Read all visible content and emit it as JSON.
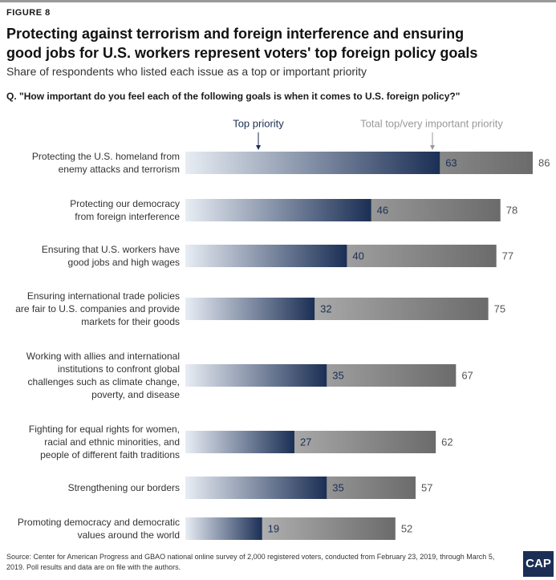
{
  "figure_label": "FIGURE 8",
  "chart_data": {
    "type": "bar",
    "title": "Protecting against terrorism and foreign interference and ensuring\ngood jobs for U.S. workers represent voters' top foreign policy goals",
    "subtitle": "Share of respondents who listed each issue as a top or important priority",
    "question": "Q. \"How important do you feel each of the following goals is when it comes to U.S. foreign policy?\"",
    "categories": [
      "Protecting the U.S. homeland from\nenemy attacks and terrorism",
      "Protecting our democracy\nfrom foreign interference",
      "Ensuring that U.S. workers have\ngood jobs and high wages",
      "Ensuring international trade policies\nare fair to U.S. companies and provide\nmarkets for their goods",
      "Working with allies and international\ninstitutions to confront global\nchallenges such as climate change,\npoverty, and disease",
      "Fighting for equal rights for women,\nracial and ethnic minorities, and\npeople of different faith traditions",
      "Strengthening our borders",
      "Promoting democracy and democratic\nvalues around the world"
    ],
    "series": [
      {
        "name": "Total top/very important priority",
        "color": "#6b6b6b",
        "values": [
          86,
          78,
          77,
          75,
          67,
          62,
          57,
          52
        ]
      },
      {
        "name": "Top priority",
        "color": "#1b2f55",
        "values": [
          63,
          46,
          40,
          32,
          35,
          27,
          35,
          19
        ]
      }
    ],
    "source": "Source: Center for American Progress and GBAO national online survey of 2,000 registered voters, conducted from February 23, 2019, through March 5, 2019. Poll results and data are on file with the authors."
  },
  "logo": "CAP"
}
